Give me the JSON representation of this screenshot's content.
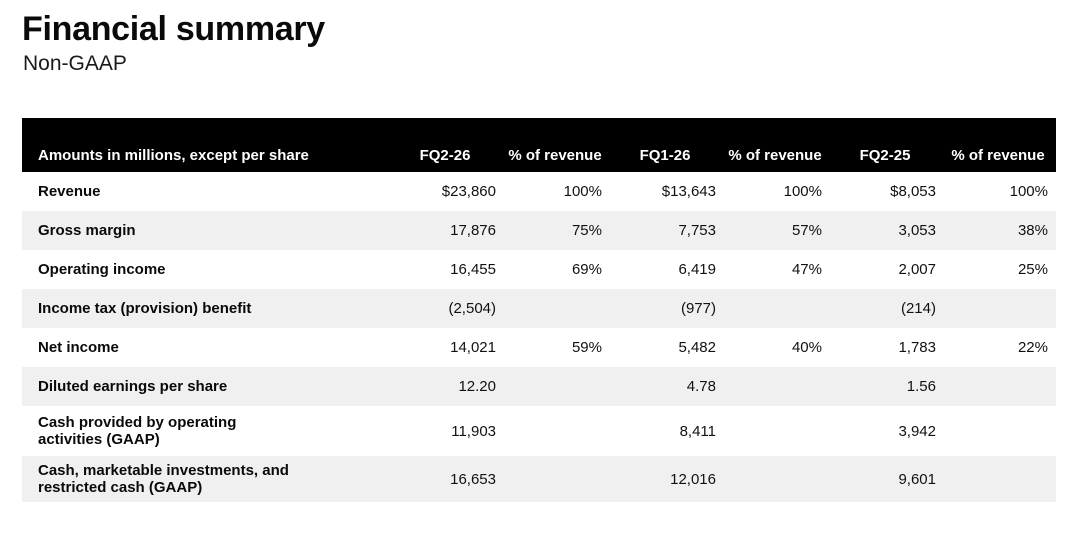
{
  "page": {
    "title": "Financial summary",
    "subtitle": "Non-GAAP"
  },
  "table": {
    "header": {
      "label": "Amounts in millions, except per share",
      "columns": [
        "FQ2-26",
        "% of revenue",
        "FQ1-26",
        "% of revenue",
        "FQ2-25",
        "% of revenue"
      ]
    },
    "rows": [
      {
        "label": "Revenue",
        "values": [
          "$23,860",
          "100%",
          "$13,643",
          "100%",
          "$8,053",
          "100%"
        ]
      },
      {
        "label": "Gross margin",
        "values": [
          "17,876",
          "75%",
          "7,753",
          "57%",
          "3,053",
          "38%"
        ]
      },
      {
        "label": "Operating income",
        "values": [
          "16,455",
          "69%",
          "6,419",
          "47%",
          "2,007",
          "25%"
        ]
      },
      {
        "label": "Income tax (provision) benefit",
        "values": [
          "(2,504)",
          "",
          "(977)",
          "",
          "(214)",
          ""
        ]
      },
      {
        "label": "Net income",
        "values": [
          "14,021",
          "59%",
          "5,482",
          "40%",
          "1,783",
          "22%"
        ]
      },
      {
        "label": "Diluted earnings per share",
        "values": [
          "12.20",
          "",
          "4.78",
          "",
          "1.56",
          ""
        ]
      },
      {
        "label": "Cash provided by operating activities (GAAP)",
        "values": [
          "11,903",
          "",
          "8,411",
          "",
          "3,942",
          ""
        ]
      },
      {
        "label": "Cash, marketable investments, and restricted cash (GAAP)",
        "values": [
          "16,653",
          "",
          "12,016",
          "",
          "9,601",
          ""
        ]
      }
    ],
    "colors": {
      "header_bg": "#000000",
      "header_text": "#ffffff",
      "stripe_bg": "#f0f0f0",
      "text": "#111111"
    }
  }
}
